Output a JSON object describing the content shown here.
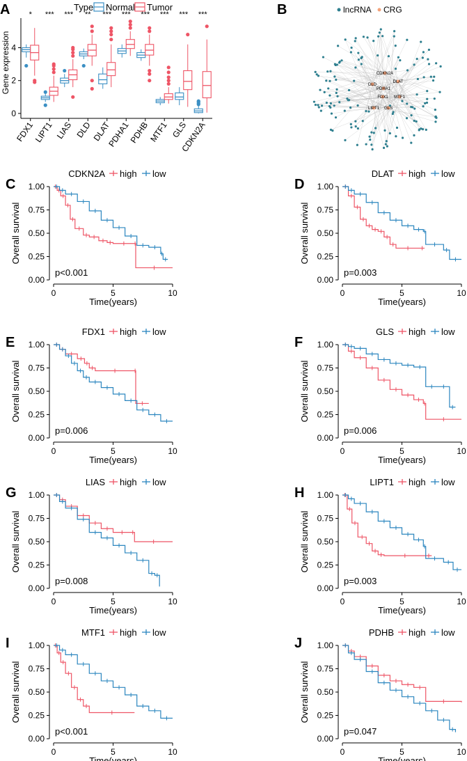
{
  "colors": {
    "normal": "#3b8fc4",
    "tumor": "#ee5566",
    "high": "#ee5566",
    "low": "#2b86bf",
    "edge": "#bbbbbb",
    "lnc": "#2e7f8f",
    "crg": "#f2a27a"
  },
  "panelA": {
    "letter": "A",
    "legend_title": "Type",
    "legend_normal": "Normal",
    "legend_tumor": "Tumor",
    "ylabel": "Gene expression",
    "chart_data": {
      "type": "box",
      "ylim": [
        -0.3,
        5.8
      ],
      "yticks": [
        0,
        2,
        4
      ],
      "categories": [
        "FDX1",
        "LIPT1",
        "LIAS",
        "DLD",
        "DLAT",
        "PDHA1",
        "PDHB",
        "MTF1",
        "GLS",
        "CDKN2A"
      ],
      "significance": [
        "*",
        "***",
        "***",
        "**",
        "***",
        "***",
        "***",
        "***",
        "***",
        "***"
      ],
      "normal": [
        {
          "q1": 3.75,
          "med": 3.88,
          "q3": 4.0,
          "lo": 3.4,
          "hi": 4.2,
          "out": [
            2.9
          ]
        },
        {
          "q1": 0.85,
          "med": 0.95,
          "q3": 1.05,
          "lo": 0.7,
          "hi": 1.2,
          "out": [
            0.5,
            1.3
          ]
        },
        {
          "q1": 1.85,
          "med": 2.0,
          "q3": 2.15,
          "lo": 1.6,
          "hi": 2.4,
          "out": [
            2.6
          ]
        },
        {
          "q1": 3.5,
          "med": 3.62,
          "q3": 3.75,
          "lo": 3.3,
          "hi": 3.95,
          "out": [
            2.9
          ]
        },
        {
          "q1": 1.8,
          "med": 2.05,
          "q3": 2.4,
          "lo": 1.5,
          "hi": 2.8,
          "out": []
        },
        {
          "q1": 3.65,
          "med": 3.8,
          "q3": 3.95,
          "lo": 3.4,
          "hi": 4.2,
          "out": []
        },
        {
          "q1": 3.4,
          "med": 3.55,
          "q3": 3.7,
          "lo": 3.2,
          "hi": 3.9,
          "out": []
        },
        {
          "q1": 0.65,
          "med": 0.75,
          "q3": 0.85,
          "lo": 0.5,
          "hi": 1.0,
          "out": []
        },
        {
          "q1": 0.85,
          "med": 1.0,
          "q3": 1.25,
          "lo": 0.5,
          "hi": 1.6,
          "out": []
        },
        {
          "q1": 0.05,
          "med": 0.15,
          "q3": 0.28,
          "lo": 0.0,
          "hi": 0.45,
          "out": [
            0.55,
            0.62,
            0.7,
            0.75
          ]
        }
      ],
      "tumor": [
        {
          "q1": 3.25,
          "med": 3.7,
          "q3": 4.15,
          "lo": 2.3,
          "hi": 5.2,
          "out": [
            1.9,
            2.0
          ]
        },
        {
          "q1": 1.1,
          "med": 1.35,
          "q3": 1.6,
          "lo": 0.7,
          "hi": 2.3,
          "out": [
            2.5,
            2.7,
            2.9,
            3.0
          ]
        },
        {
          "q1": 2.05,
          "med": 2.35,
          "q3": 2.65,
          "lo": 1.6,
          "hi": 3.3,
          "out": [
            1.0,
            3.5,
            3.7,
            3.9,
            4.0
          ]
        },
        {
          "q1": 3.5,
          "med": 3.85,
          "q3": 4.2,
          "lo": 2.9,
          "hi": 4.8,
          "out": [
            1.5,
            2.0,
            5.0,
            5.3
          ]
        },
        {
          "q1": 2.3,
          "med": 2.65,
          "q3": 3.1,
          "lo": 1.6,
          "hi": 4.2,
          "out": [
            4.5,
            4.8,
            5.0,
            5.2
          ]
        },
        {
          "q1": 3.95,
          "med": 4.2,
          "q3": 4.5,
          "lo": 3.5,
          "hi": 5.0,
          "out": [
            5.2,
            5.4,
            5.6
          ]
        },
        {
          "q1": 3.55,
          "med": 3.85,
          "q3": 4.2,
          "lo": 2.9,
          "hi": 4.8,
          "out": [
            2.0,
            2.4,
            2.6,
            5.0,
            5.2
          ]
        },
        {
          "q1": 0.85,
          "med": 1.0,
          "q3": 1.2,
          "lo": 0.6,
          "hi": 1.6,
          "out": [
            1.8,
            2.0,
            2.2,
            2.5,
            2.8
          ]
        },
        {
          "q1": 1.45,
          "med": 1.95,
          "q3": 2.6,
          "lo": 0.4,
          "hi": 4.2,
          "out": [
            4.8
          ]
        },
        {
          "q1": 0.95,
          "med": 1.7,
          "q3": 2.55,
          "lo": 0.05,
          "hi": 4.5,
          "out": [
            5.3
          ]
        }
      ]
    }
  },
  "panelB": {
    "letter": "B",
    "legend_lnc": "lncRNA",
    "legend_crg": "CRG",
    "hubs": [
      "CDKN2A",
      "DLAT",
      "DLD",
      "PDHA1",
      "FDX1",
      "MTF1",
      "LIPT1",
      "GLS"
    ]
  },
  "km_common": {
    "ylabel": "Overall survival",
    "xlabel": "Time(years)",
    "high": "high",
    "low": "low",
    "xticks": [
      "0",
      "5",
      "10"
    ],
    "yticks": [
      "0.00",
      "0.25",
      "0.50",
      "0.75",
      "1.00"
    ]
  },
  "km": [
    {
      "letter": "C",
      "gene": "CDKN2A",
      "pval": "p<0.001",
      "xmax": 10,
      "high": [
        [
          0,
          1
        ],
        [
          0.3,
          0.96
        ],
        [
          0.6,
          0.9
        ],
        [
          1,
          0.8
        ],
        [
          1.4,
          0.65
        ],
        [
          1.8,
          0.55
        ],
        [
          2.5,
          0.48
        ],
        [
          3,
          0.46
        ],
        [
          3.8,
          0.42
        ],
        [
          4.5,
          0.4
        ],
        [
          5,
          0.39
        ],
        [
          6.8,
          0.39
        ],
        [
          6.9,
          0.13
        ],
        [
          10,
          0.13
        ]
      ],
      "low": [
        [
          0,
          1
        ],
        [
          0.5,
          0.96
        ],
        [
          1,
          0.92
        ],
        [
          2,
          0.84
        ],
        [
          3,
          0.74
        ],
        [
          4,
          0.64
        ],
        [
          5,
          0.56
        ],
        [
          6,
          0.47
        ],
        [
          7,
          0.37
        ],
        [
          8,
          0.35
        ],
        [
          9,
          0.28
        ],
        [
          9.2,
          0.22
        ],
        [
          9.6,
          0.22
        ]
      ]
    },
    {
      "letter": "D",
      "gene": "DLAT",
      "pval": "p=0.003",
      "xmax": 10,
      "high": [
        [
          0,
          1
        ],
        [
          0.5,
          0.9
        ],
        [
          1,
          0.78
        ],
        [
          1.5,
          0.65
        ],
        [
          2,
          0.58
        ],
        [
          2.5,
          0.54
        ],
        [
          3,
          0.52
        ],
        [
          3.5,
          0.46
        ],
        [
          4,
          0.38
        ],
        [
          4.5,
          0.34
        ],
        [
          6.5,
          0.34
        ],
        [
          6.9,
          0.34
        ]
      ],
      "low": [
        [
          0,
          1
        ],
        [
          0.5,
          0.96
        ],
        [
          1,
          0.92
        ],
        [
          2,
          0.83
        ],
        [
          3,
          0.72
        ],
        [
          4,
          0.64
        ],
        [
          5,
          0.58
        ],
        [
          6,
          0.54
        ],
        [
          6.8,
          0.52
        ],
        [
          7,
          0.38
        ],
        [
          8.5,
          0.32
        ],
        [
          9,
          0.22
        ],
        [
          10,
          0.22
        ]
      ]
    },
    {
      "letter": "E",
      "gene": "FDX1",
      "pval": "p=0.006",
      "xmax": 10,
      "high": [
        [
          0,
          1
        ],
        [
          0.5,
          0.95
        ],
        [
          1,
          0.9
        ],
        [
          2,
          0.85
        ],
        [
          2.6,
          0.8
        ],
        [
          3,
          0.75
        ],
        [
          3.5,
          0.72
        ],
        [
          6.8,
          0.72
        ],
        [
          6.9,
          0.37
        ],
        [
          8,
          0.37
        ]
      ],
      "low": [
        [
          0,
          1
        ],
        [
          0.5,
          0.95
        ],
        [
          1,
          0.88
        ],
        [
          1.5,
          0.8
        ],
        [
          2,
          0.72
        ],
        [
          2.5,
          0.65
        ],
        [
          3,
          0.6
        ],
        [
          4,
          0.54
        ],
        [
          5,
          0.47
        ],
        [
          6,
          0.4
        ],
        [
          7,
          0.3
        ],
        [
          8,
          0.25
        ],
        [
          9,
          0.18
        ],
        [
          10,
          0.18
        ]
      ]
    },
    {
      "letter": "F",
      "gene": "GLS",
      "pval": "p=0.006",
      "xmax": 10,
      "high": [
        [
          0,
          1
        ],
        [
          0.5,
          0.93
        ],
        [
          1,
          0.86
        ],
        [
          2,
          0.75
        ],
        [
          3,
          0.62
        ],
        [
          4,
          0.52
        ],
        [
          5,
          0.46
        ],
        [
          6,
          0.41
        ],
        [
          6.8,
          0.37
        ],
        [
          7,
          0.2
        ],
        [
          10,
          0.2
        ]
      ],
      "low": [
        [
          0,
          1
        ],
        [
          0.5,
          0.98
        ],
        [
          1,
          0.96
        ],
        [
          2,
          0.9
        ],
        [
          3,
          0.84
        ],
        [
          4,
          0.8
        ],
        [
          5,
          0.78
        ],
        [
          6,
          0.76
        ],
        [
          7,
          0.55
        ],
        [
          8,
          0.55
        ],
        [
          9,
          0.33
        ],
        [
          9.5,
          0.33
        ]
      ]
    },
    {
      "letter": "G",
      "gene": "LIAS",
      "pval": "p=0.008",
      "xmax": 10,
      "high": [
        [
          0,
          1
        ],
        [
          0.5,
          0.95
        ],
        [
          1,
          0.88
        ],
        [
          2,
          0.78
        ],
        [
          3,
          0.7
        ],
        [
          4,
          0.64
        ],
        [
          5,
          0.6
        ],
        [
          6.5,
          0.6
        ],
        [
          6.8,
          0.5
        ],
        [
          10,
          0.5
        ]
      ],
      "low": [
        [
          0,
          1
        ],
        [
          0.5,
          0.93
        ],
        [
          1,
          0.86
        ],
        [
          2,
          0.74
        ],
        [
          3,
          0.6
        ],
        [
          4,
          0.54
        ],
        [
          5,
          0.46
        ],
        [
          6,
          0.38
        ],
        [
          7,
          0.3
        ],
        [
          8,
          0.16
        ],
        [
          8.5,
          0.14
        ],
        [
          8.9,
          0.02
        ]
      ]
    },
    {
      "letter": "H",
      "gene": "LIPT1",
      "pval": "p=0.003",
      "xmax": 10,
      "high": [
        [
          0,
          1
        ],
        [
          0.4,
          0.85
        ],
        [
          0.8,
          0.7
        ],
        [
          1.3,
          0.55
        ],
        [
          2,
          0.48
        ],
        [
          2.5,
          0.4
        ],
        [
          3,
          0.36
        ],
        [
          3.5,
          0.35
        ],
        [
          7,
          0.35
        ],
        [
          7.5,
          0.35
        ]
      ],
      "low": [
        [
          0,
          1
        ],
        [
          0.5,
          0.96
        ],
        [
          1,
          0.91
        ],
        [
          2,
          0.82
        ],
        [
          3,
          0.72
        ],
        [
          4,
          0.65
        ],
        [
          5,
          0.58
        ],
        [
          6,
          0.52
        ],
        [
          6.8,
          0.45
        ],
        [
          7,
          0.32
        ],
        [
          8.5,
          0.28
        ],
        [
          9.3,
          0.2
        ],
        [
          10,
          0.2
        ]
      ]
    },
    {
      "letter": "I",
      "gene": "MTF1",
      "pval": "p<0.001",
      "xmax": 10,
      "high": [
        [
          0,
          1
        ],
        [
          0.3,
          0.92
        ],
        [
          0.6,
          0.82
        ],
        [
          1,
          0.7
        ],
        [
          1.5,
          0.55
        ],
        [
          2,
          0.42
        ],
        [
          2.5,
          0.35
        ],
        [
          3,
          0.28
        ],
        [
          6.8,
          0.28
        ]
      ],
      "low": [
        [
          0,
          1
        ],
        [
          0.5,
          0.95
        ],
        [
          1,
          0.9
        ],
        [
          2,
          0.8
        ],
        [
          3,
          0.7
        ],
        [
          4,
          0.62
        ],
        [
          5,
          0.55
        ],
        [
          6,
          0.47
        ],
        [
          7,
          0.35
        ],
        [
          8,
          0.3
        ],
        [
          9,
          0.22
        ],
        [
          10,
          0.22
        ]
      ]
    },
    {
      "letter": "J",
      "gene": "PDHB",
      "pval": "p=0.047",
      "xmax": 10,
      "high": [
        [
          0,
          1
        ],
        [
          0.5,
          0.94
        ],
        [
          1,
          0.88
        ],
        [
          2,
          0.78
        ],
        [
          3,
          0.68
        ],
        [
          4,
          0.62
        ],
        [
          5,
          0.58
        ],
        [
          6,
          0.55
        ],
        [
          7,
          0.4
        ],
        [
          10,
          0.39
        ]
      ],
      "low": [
        [
          0,
          1
        ],
        [
          0.5,
          0.92
        ],
        [
          1,
          0.85
        ],
        [
          2,
          0.72
        ],
        [
          3,
          0.6
        ],
        [
          4,
          0.52
        ],
        [
          5,
          0.45
        ],
        [
          6,
          0.38
        ],
        [
          7,
          0.3
        ],
        [
          8,
          0.2
        ],
        [
          9,
          0.1
        ],
        [
          9.5,
          0.07
        ]
      ]
    }
  ]
}
